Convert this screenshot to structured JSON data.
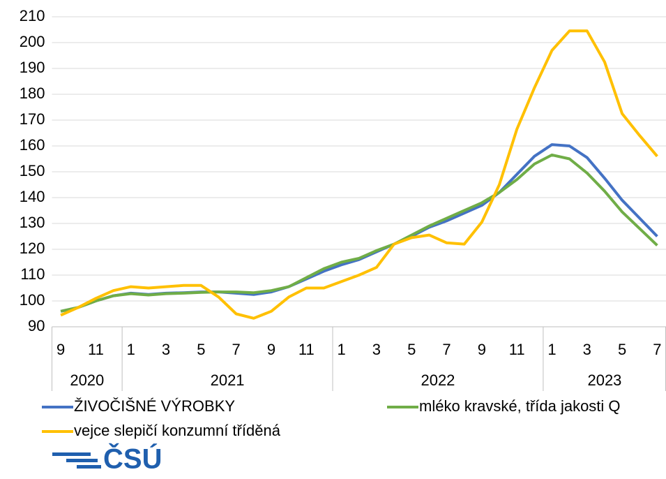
{
  "chart_data": {
    "type": "line",
    "categories": [
      "9",
      null,
      "11",
      null,
      "1",
      null,
      "3",
      null,
      "5",
      null,
      "7",
      null,
      "9",
      null,
      "11",
      null,
      "1",
      null,
      "3",
      null,
      "5",
      null,
      "7",
      null,
      "9",
      null,
      "11",
      null,
      "1",
      null,
      "3",
      null,
      "5",
      null,
      "7"
    ],
    "years": [
      "2020",
      "2021",
      "2022",
      "2023"
    ],
    "series": [
      {
        "name": "ŽIVOČIŠNÉ VÝROBKY",
        "color": "#4472c4",
        "values": [
          96,
          97.5,
          100,
          102,
          103,
          102.5,
          103,
          103.2,
          103.5,
          103.5,
          103,
          102.5,
          103.5,
          105.5,
          108.5,
          111.5,
          114,
          116,
          119,
          122,
          125,
          128.5,
          131,
          134,
          137,
          142,
          149,
          156,
          160.5,
          160,
          155.5,
          147.5,
          139,
          132,
          125
        ]
      },
      {
        "name": "mléko kravské, třída jakosti Q",
        "color": "#70ad47",
        "values": [
          96,
          97.5,
          100,
          102,
          102.8,
          102.3,
          102.8,
          103,
          103.3,
          103.5,
          103.5,
          103.2,
          104,
          105.5,
          109,
          112.5,
          115,
          116.5,
          119.5,
          122,
          125.5,
          129,
          132,
          135,
          138,
          142,
          147,
          153,
          156.5,
          155,
          149.5,
          142.5,
          134.5,
          128,
          121.5
        ]
      },
      {
        "name": "vejce slepičí konzumní tříděná",
        "color": "#ffc000",
        "values": [
          94.5,
          97.5,
          101,
          104,
          105.5,
          105,
          105.5,
          106,
          106,
          101.5,
          95,
          93.3,
          96,
          101.5,
          105,
          105,
          107.5,
          110,
          113,
          122,
          124.5,
          125.5,
          122.5,
          122,
          130.5,
          145,
          166.5,
          182.5,
          197,
          204.5,
          204.5,
          192.5,
          172.5,
          164,
          156
        ]
      }
    ],
    "ylim": [
      90,
      210
    ],
    "yticks": [
      90,
      100,
      110,
      120,
      130,
      140,
      150,
      160,
      170,
      180,
      190,
      200,
      210
    ],
    "grid": true
  },
  "logo": {
    "text": "ČSÚ"
  }
}
